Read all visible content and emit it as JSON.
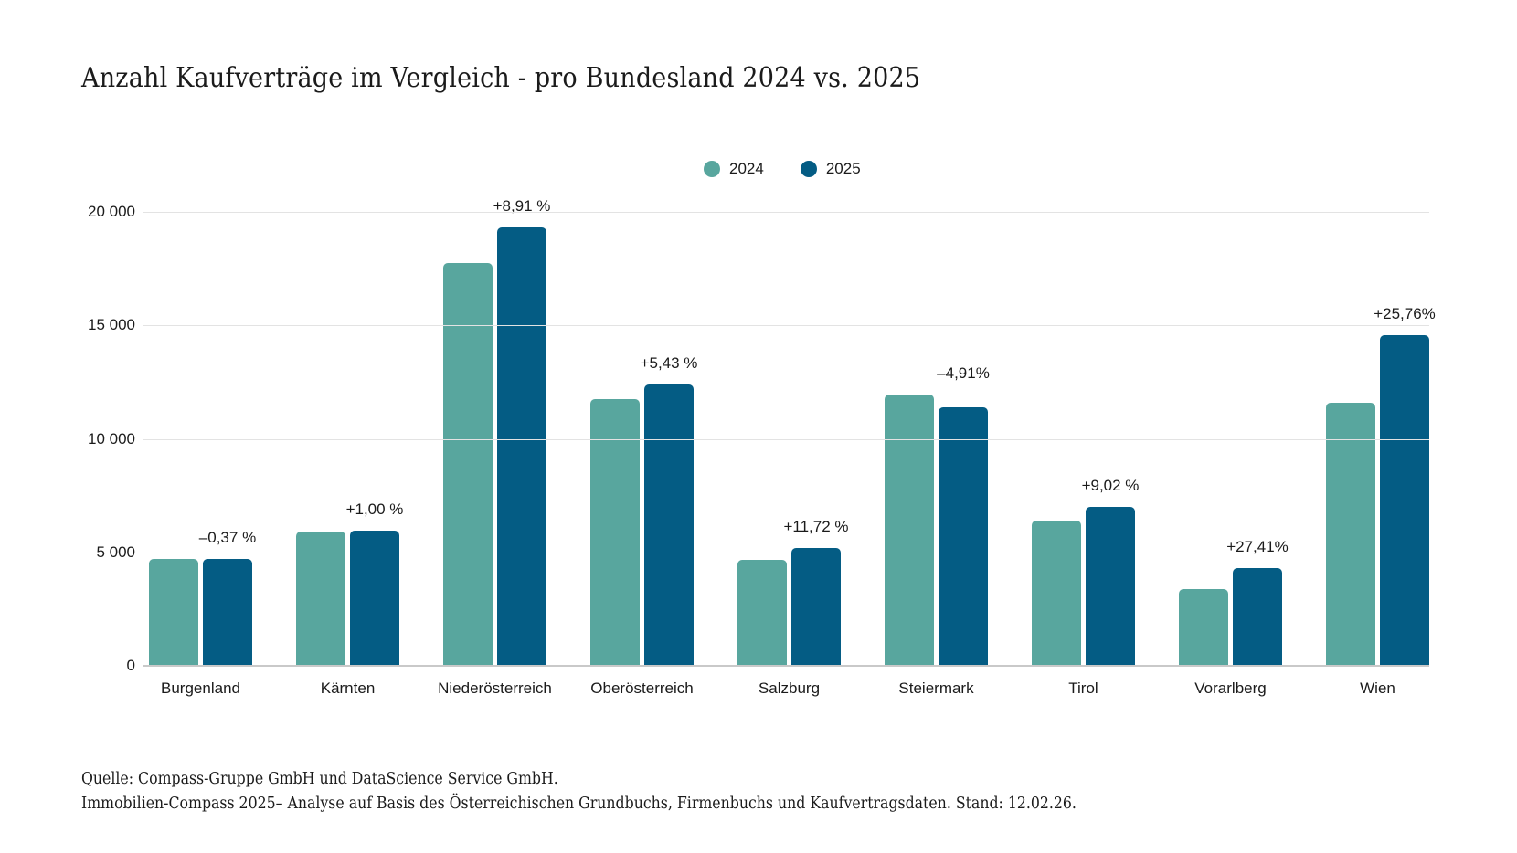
{
  "title": "Anzahl Kaufverträge im Vergleich - pro Bundesland 2024 vs. 2025",
  "footer": {
    "line1": "Quelle: Compass-Gruppe GmbH und DataScience Service GmbH.",
    "line2": "Immobilien-Compass 2025– Analyse auf Basis des Österreichischen Grundbuchs, Firmenbuchs und Kaufvertragsdaten. Stand: 12.02.26."
  },
  "colors": {
    "series_2024": "#58A69E",
    "series_2025": "#045C84",
    "gridline": "#e3e3e3",
    "axisline": "#c9c9c9",
    "text": "#1b1b1b",
    "background": "#ffffff"
  },
  "chart_data": {
    "type": "bar",
    "title": "Anzahl Kaufverträge im Vergleich - pro Bundesland 2024 vs. 2025",
    "categories": [
      "Burgenland",
      "Kärnten",
      "Niederösterreich",
      "Oberösterreich",
      "Salzburg",
      "Steiermark",
      "Tirol",
      "Vorarlberg",
      "Wien"
    ],
    "series": [
      {
        "name": "2024",
        "color": "#58A69E",
        "values": [
          4720,
          5900,
          17750,
          11760,
          4650,
          11960,
          6420,
          3380,
          11600
        ]
      },
      {
        "name": "2025",
        "color": "#045C84",
        "values": [
          4702,
          5959,
          19331,
          12399,
          5195,
          11373,
          6999,
          4306,
          14588
        ]
      }
    ],
    "delta_labels": [
      "–0,37 %",
      "+1,00 %",
      "+8,91 %",
      "+5,43 %",
      "+11,72 %",
      "–4,91%",
      "+9,02 %",
      "+27,41%",
      "+25,76%"
    ],
    "xlabel": "",
    "ylabel": "",
    "ylim": [
      0,
      20000
    ],
    "yticks": [
      {
        "value": 20000,
        "label": "20 000"
      },
      {
        "value": 15000,
        "label": "15 000"
      },
      {
        "value": 10000,
        "label": "10 000"
      },
      {
        "value": 5000,
        "label": "5 000"
      },
      {
        "value": 0,
        "label": "0"
      }
    ],
    "grid": true,
    "legend_position": "top-center"
  }
}
